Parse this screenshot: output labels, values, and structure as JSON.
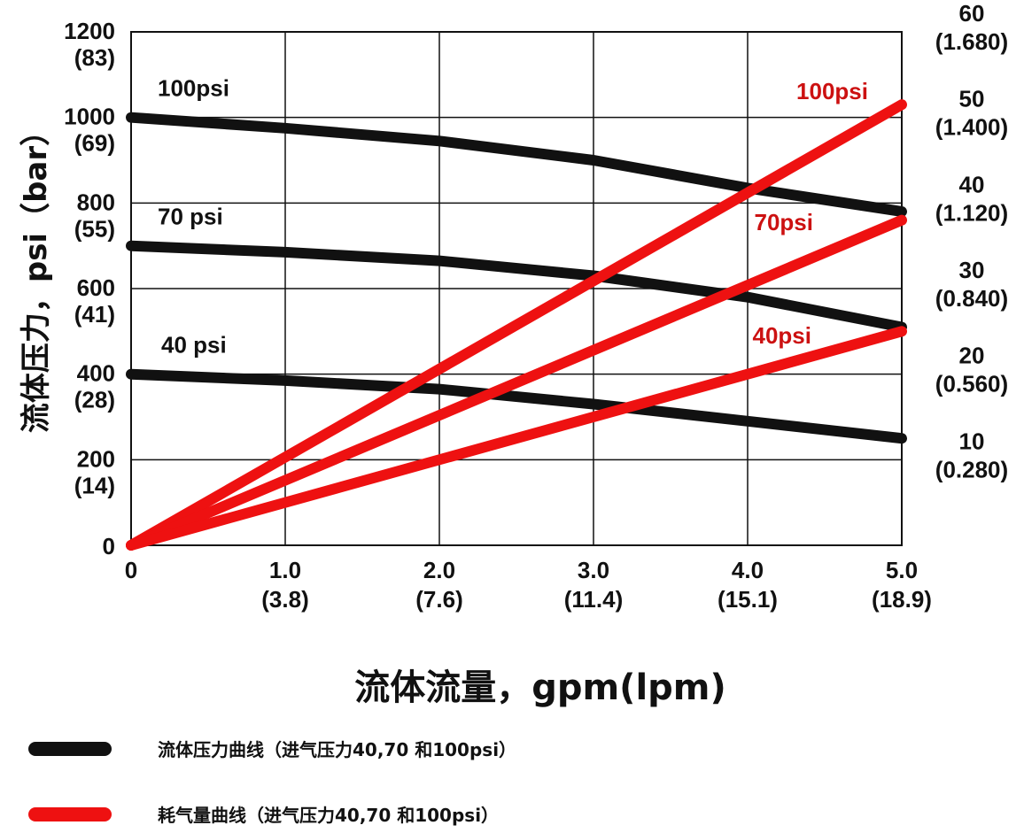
{
  "chart_data": {
    "type": "line",
    "xlabel": "流体流量，gpm(lpm)",
    "ylabel": "流体压力，psi（bar）",
    "xlim": [
      0,
      5
    ],
    "ylim": [
      0,
      1200
    ],
    "y2lim": [
      0,
      60
    ],
    "grid": true,
    "x_ticks": [
      {
        "value": 0,
        "label": "0",
        "sub": ""
      },
      {
        "value": 1,
        "label": "1.0",
        "sub": "(3.8)"
      },
      {
        "value": 2,
        "label": "2.0",
        "sub": "(7.6)"
      },
      {
        "value": 3,
        "label": "3.0",
        "sub": "(11.4)"
      },
      {
        "value": 4,
        "label": "4.0",
        "sub": "(15.1)"
      },
      {
        "value": 5,
        "label": "5.0",
        "sub": "(18.9)"
      }
    ],
    "y_ticks": [
      {
        "value": 0,
        "label": "0",
        "sub": ""
      },
      {
        "value": 200,
        "label": "200",
        "sub": "(14)"
      },
      {
        "value": 400,
        "label": "400",
        "sub": "(28)"
      },
      {
        "value": 600,
        "label": "600",
        "sub": "(41)"
      },
      {
        "value": 800,
        "label": "800",
        "sub": "(55)"
      },
      {
        "value": 1000,
        "label": "1000",
        "sub": "(69)"
      },
      {
        "value": 1200,
        "label": "1200",
        "sub": "(83)"
      }
    ],
    "y2_ticks": [
      {
        "value": 10,
        "label": "10",
        "sub": "(0.280)"
      },
      {
        "value": 20,
        "label": "20",
        "sub": "(0.560)"
      },
      {
        "value": 30,
        "label": "30",
        "sub": "(0.840)"
      },
      {
        "value": 40,
        "label": "40",
        "sub": "(1.120)"
      },
      {
        "value": 50,
        "label": "50",
        "sub": "(1.400)"
      },
      {
        "value": 60,
        "label": "60",
        "sub": "(1.680)"
      }
    ],
    "series": [
      {
        "name": "100psi",
        "group": "fluid_pressure",
        "axis": "y",
        "color": "#111111",
        "points": [
          [
            0,
            1000
          ],
          [
            1,
            975
          ],
          [
            2,
            945
          ],
          [
            3,
            900
          ],
          [
            4,
            835
          ],
          [
            5,
            780
          ]
        ]
      },
      {
        "name": "70 psi",
        "group": "fluid_pressure",
        "axis": "y",
        "color": "#111111",
        "points": [
          [
            0,
            700
          ],
          [
            1,
            685
          ],
          [
            2,
            665
          ],
          [
            3,
            630
          ],
          [
            4,
            580
          ],
          [
            5,
            510
          ]
        ]
      },
      {
        "name": "40 psi",
        "group": "fluid_pressure",
        "axis": "y",
        "color": "#111111",
        "points": [
          [
            0,
            400
          ],
          [
            1,
            385
          ],
          [
            2,
            365
          ],
          [
            3,
            330
          ],
          [
            4,
            290
          ],
          [
            5,
            250
          ]
        ]
      },
      {
        "name": "100psi",
        "group": "air_consumption",
        "axis": "y2",
        "color": "#ee1111",
        "points": [
          [
            0,
            0
          ],
          [
            5,
            51.5
          ]
        ]
      },
      {
        "name": "70psi",
        "group": "air_consumption",
        "axis": "y2",
        "color": "#ee1111",
        "points": [
          [
            0,
            0
          ],
          [
            5,
            38
          ]
        ]
      },
      {
        "name": "40psi",
        "group": "air_consumption",
        "axis": "y2",
        "color": "#ee1111",
        "points": [
          [
            0,
            0
          ],
          [
            5,
            25
          ]
        ]
      }
    ],
    "legend": [
      {
        "label": "流体压力曲线（进气压力40,70 和100psi）",
        "color": "#111111"
      },
      {
        "label": "耗气量曲线（进气压力40,70 和100psi）",
        "color": "#ee1111"
      }
    ],
    "legend_position": "bottom-left"
  }
}
